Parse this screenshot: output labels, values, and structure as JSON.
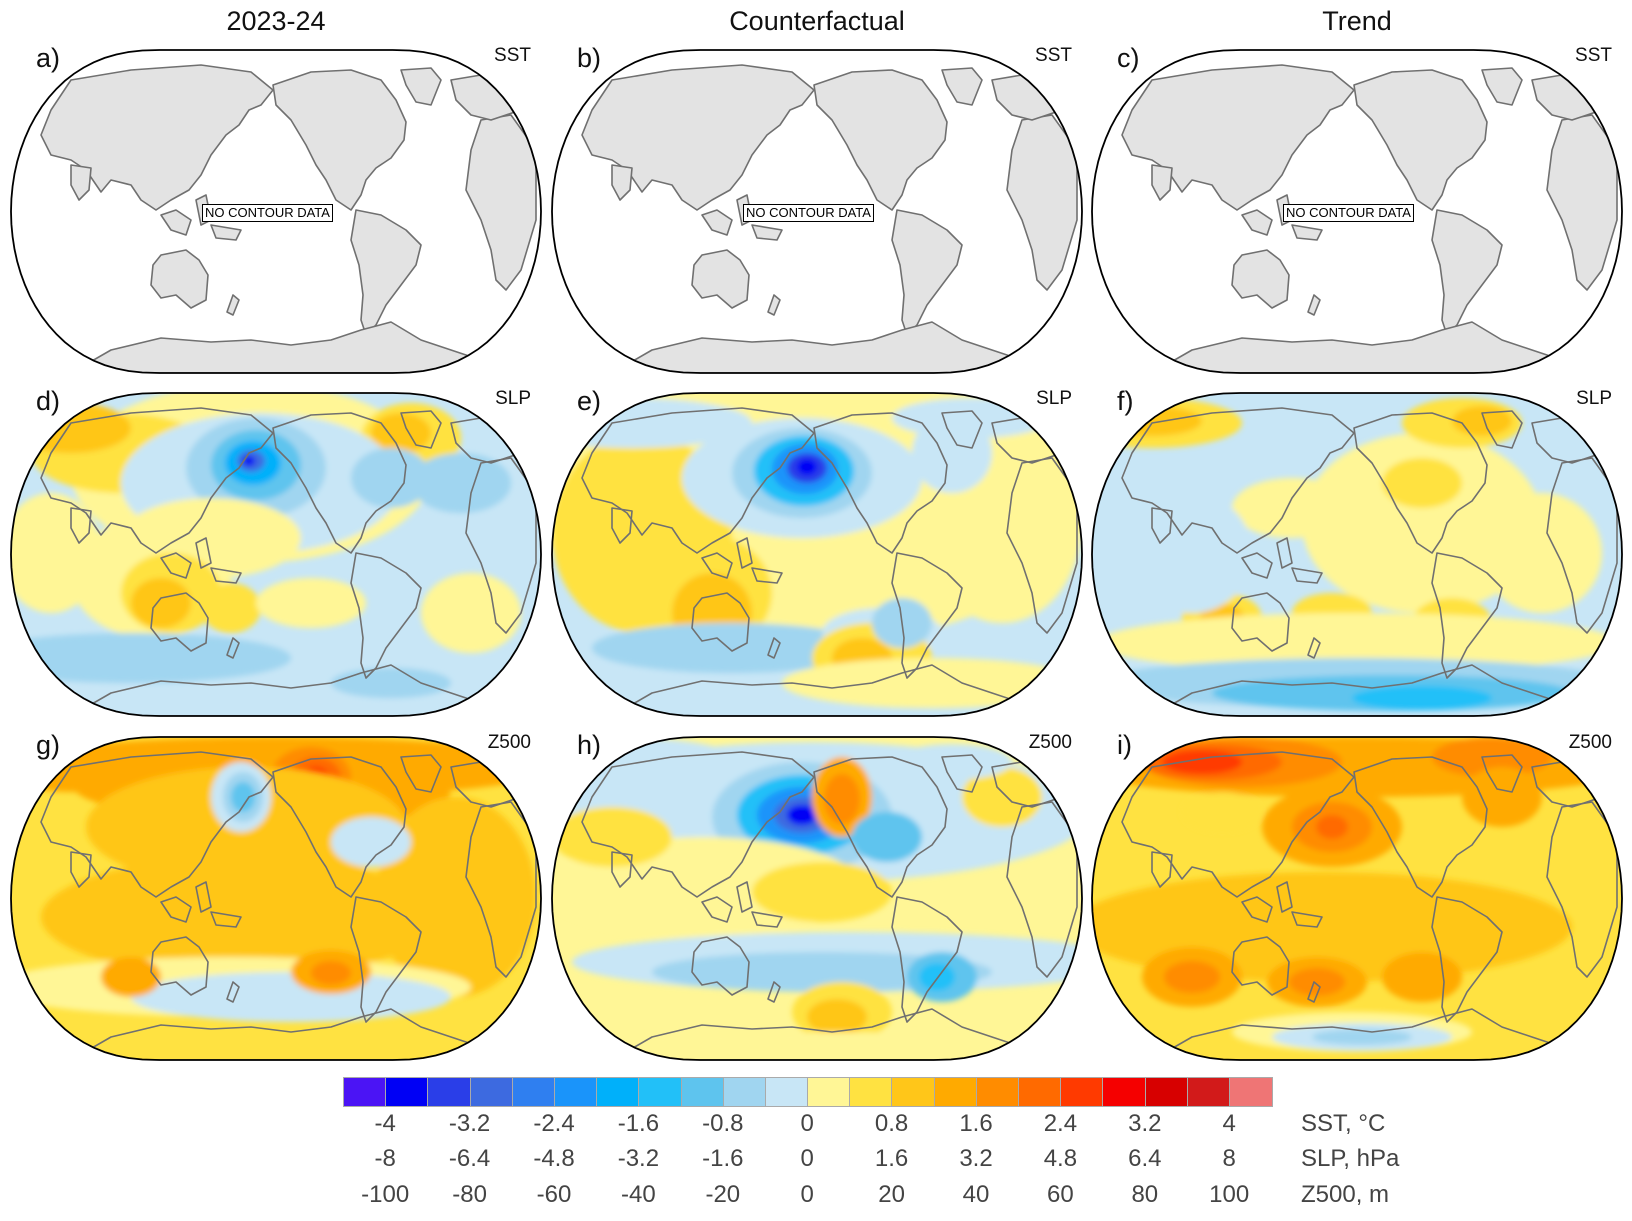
{
  "columns": [
    "2023-24",
    "Counterfactual",
    "Trend"
  ],
  "rows": [
    "SST",
    "SLP",
    "Z500"
  ],
  "panels": [
    {
      "id": "a",
      "label": "a)",
      "variable": "SST",
      "column": "2023-24",
      "status": "NO CONTOUR DATA"
    },
    {
      "id": "b",
      "label": "b)",
      "variable": "SST",
      "column": "Counterfactual",
      "status": "NO CONTOUR DATA"
    },
    {
      "id": "c",
      "label": "c)",
      "variable": "SST",
      "column": "Trend",
      "status": "NO CONTOUR DATA"
    },
    {
      "id": "d",
      "label": "d)",
      "variable": "SLP",
      "column": "2023-24"
    },
    {
      "id": "e",
      "label": "e)",
      "variable": "SLP",
      "column": "Counterfactual"
    },
    {
      "id": "f",
      "label": "f)",
      "variable": "SLP",
      "column": "Trend"
    },
    {
      "id": "g",
      "label": "g)",
      "variable": "Z500",
      "column": "2023-24"
    },
    {
      "id": "h",
      "label": "h)",
      "variable": "Z500",
      "column": "Counterfactual"
    },
    {
      "id": "i",
      "label": "i)",
      "variable": "Z500",
      "column": "Trend"
    }
  ],
  "colors": {
    "land_fill": "#e3e3e3",
    "coastline": "#707070",
    "map_border": "#000000",
    "colorbar_levels": [
      "#4b14f5",
      "#0000f5",
      "#2a3ee8",
      "#3d6ae0",
      "#2f7ff0",
      "#1a94fa",
      "#00b0fa",
      "#22c0f8",
      "#5ec4ee",
      "#a0d5f0",
      "#c8e6f6",
      "#fff696",
      "#ffe241",
      "#ffc619",
      "#ffaa00",
      "#ff8c00",
      "#ff6a00",
      "#ff3a00",
      "#f50000",
      "#d70000",
      "#d21a1a",
      "#ef7575"
    ]
  },
  "chart_data": {
    "type": "heatmap",
    "title": "",
    "description": "3x3 grid of global map anomaly panels (Pacific-centred). Rows: SST, SLP, Z500. Columns: 2023-24, Counterfactual, Trend. SST panels show no contour data.",
    "colorbar": {
      "n_bins": 22,
      "ticks": {
        "SST": {
          "values": [
            "-4",
            "-3.2",
            "-2.4",
            "-1.6",
            "-0.8",
            "0",
            "0.8",
            "1.6",
            "2.4",
            "3.2",
            "4"
          ],
          "unit": "SST, °C",
          "range": [
            -4,
            4
          ]
        },
        "SLP": {
          "values": [
            "-8",
            "-6.4",
            "-4.8",
            "-3.2",
            "-1.6",
            "0",
            "1.6",
            "3.2",
            "4.8",
            "6.4",
            "8"
          ],
          "unit": "SLP, hPa",
          "range": [
            -8,
            8
          ]
        },
        "Z500": {
          "values": [
            "-100",
            "-80",
            "-60",
            "-40",
            "-20",
            "0",
            "20",
            "40",
            "60",
            "80",
            "100"
          ],
          "unit": "Z500, m",
          "range": [
            -100,
            100
          ]
        }
      }
    },
    "features": {
      "d": [
        {
          "region": "Gulf of Alaska",
          "sign": "negative",
          "level": -6.4
        },
        {
          "region": "Eastern North America",
          "sign": "negative",
          "level": -2.4
        },
        {
          "region": "Australia / Indian Ocean",
          "sign": "positive",
          "level": 2.4
        },
        {
          "region": "Southern Ocean",
          "sign": "negative",
          "level": -1.6
        }
      ],
      "e": [
        {
          "region": "Gulf of Alaska",
          "sign": "negative",
          "level": -7.2
        },
        {
          "region": "Central South Pacific",
          "sign": "negative",
          "level": -1.6
        },
        {
          "region": "Southern Pacific (60S)",
          "sign": "positive",
          "level": 3.2
        }
      ],
      "f": [
        {
          "region": "Arctic / N Europe",
          "sign": "positive",
          "level": 3.2
        },
        {
          "region": "Antarctic",
          "sign": "negative",
          "level": -3.2
        },
        {
          "region": "Southern midlatitudes",
          "sign": "positive",
          "level": 2.4
        }
      ],
      "g": [
        {
          "region": "Alaska / Bering",
          "sign": "negative",
          "level": -50
        },
        {
          "region": "Western Canada",
          "sign": "positive",
          "level": 70
        },
        {
          "region": "Global tropics",
          "sign": "positive",
          "level": 30
        }
      ],
      "h": [
        {
          "region": "Gulf of Alaska",
          "sign": "negative",
          "level": -80
        },
        {
          "region": "Canada",
          "sign": "positive",
          "level": 50
        },
        {
          "region": "South Pacific (50S)",
          "sign": "negative",
          "level": -40
        }
      ],
      "i": [
        {
          "region": "Arctic / Siberia",
          "sign": "positive",
          "level": 80
        },
        {
          "region": "Global",
          "sign": "positive",
          "level": 30
        },
        {
          "region": "Antarctic",
          "sign": "negative",
          "level": -20
        }
      ]
    }
  }
}
